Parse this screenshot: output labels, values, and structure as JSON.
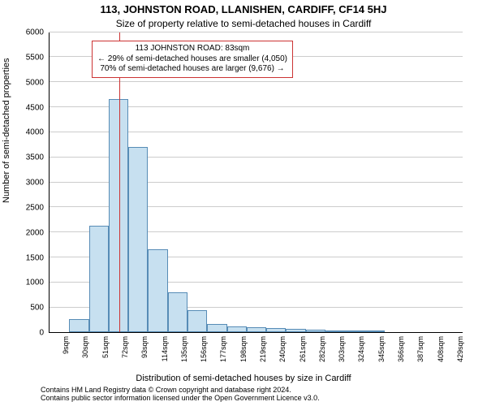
{
  "title_line1": "113, JOHNSTON ROAD, LLANISHEN, CARDIFF, CF14 5HJ",
  "title_line2": "Size of property relative to semi-detached houses in Cardiff",
  "y_axis_label": "Number of semi-detached properties",
  "x_axis_label": "Distribution of semi-detached houses by size in Cardiff",
  "footer_line1": "Contains HM Land Registry data © Crown copyright and database right 2024.",
  "footer_line2": "Contains public sector information licensed under the Open Government Licence v3.0.",
  "chart": {
    "type": "histogram",
    "ylim_max": 6000,
    "yticks": [
      0,
      500,
      1000,
      1500,
      2000,
      2500,
      3000,
      3500,
      4000,
      4500,
      5000,
      5500,
      6000
    ],
    "x_categories_sqm": [
      9,
      30,
      51,
      72,
      93,
      114,
      135,
      156,
      177,
      198,
      219,
      240,
      261,
      282,
      303,
      324,
      345,
      366,
      387,
      408,
      429
    ],
    "bar_values": [
      0,
      260,
      2120,
      4650,
      3700,
      1650,
      790,
      430,
      170,
      120,
      100,
      80,
      60,
      45,
      38,
      40,
      30,
      0,
      0,
      0,
      0
    ],
    "bar_fill": "#c7e0f0",
    "bar_border": "#578cb6",
    "grid_color": "#cccccc",
    "axis_color": "#000000",
    "reference_line_x_sqm": 83,
    "reference_line_color": "#cc3333",
    "annotation": {
      "line1": "113 JOHNSTON ROAD: 83sqm",
      "line2": "← 29% of semi-detached houses are smaller (4,050)",
      "line3": "70% of semi-detached houses are larger (9,676) →",
      "border_color": "#cc3333",
      "bg_color": "#ffffff"
    }
  }
}
